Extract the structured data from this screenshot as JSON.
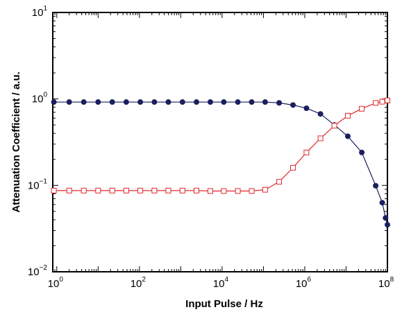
{
  "chart_data": {
    "type": "line",
    "xlabel": "Input Pulse / Hz",
    "ylabel": "Attenuation Coefficient / a.u.",
    "x_scale": "log",
    "y_scale": "log",
    "xlim": [
      0.8,
      100000000
    ],
    "ylim": [
      0.01,
      10
    ],
    "x_ticks": [
      {
        "value": 1,
        "base": "10",
        "exp": "0"
      },
      {
        "value": 100,
        "base": "10",
        "exp": "2"
      },
      {
        "value": 10000,
        "base": "10",
        "exp": "4"
      },
      {
        "value": 1000000,
        "base": "10",
        "exp": "6"
      },
      {
        "value": 100000000,
        "base": "10",
        "exp": "8"
      }
    ],
    "y_ticks": [
      {
        "value": 0.01,
        "base": "10",
        "exp": "−2"
      },
      {
        "value": 0.1,
        "base": "10",
        "exp": "−1"
      },
      {
        "value": 1,
        "base": "10",
        "exp": "0"
      },
      {
        "value": 10,
        "base": "10",
        "exp": "1"
      }
    ],
    "grid": false,
    "series": [
      {
        "color": "#1a1f5e",
        "marker": "filled-circle",
        "points": [
          [
            0.85,
            0.92
          ],
          [
            2,
            0.92
          ],
          [
            4.5,
            0.92
          ],
          [
            10,
            0.92
          ],
          [
            22,
            0.92
          ],
          [
            48,
            0.92
          ],
          [
            105,
            0.92
          ],
          [
            230,
            0.92
          ],
          [
            500,
            0.92
          ],
          [
            1100,
            0.92
          ],
          [
            2400,
            0.92
          ],
          [
            5200,
            0.92
          ],
          [
            11000,
            0.92
          ],
          [
            24000,
            0.92
          ],
          [
            52000,
            0.92
          ],
          [
            110000,
            0.92
          ],
          [
            240000,
            0.9
          ],
          [
            520000,
            0.85
          ],
          [
            1100000,
            0.78
          ],
          [
            2400000,
            0.67
          ],
          [
            5200000,
            0.5
          ],
          [
            11000000,
            0.37
          ],
          [
            24000000,
            0.24
          ],
          [
            52000000,
            0.099
          ],
          [
            75000000,
            0.063
          ],
          [
            90000000,
            0.042
          ],
          [
            100000000,
            0.035
          ]
        ]
      },
      {
        "color": "#e0262b",
        "marker": "open-square",
        "points": [
          [
            0.85,
            0.087
          ],
          [
            2,
            0.087
          ],
          [
            4.5,
            0.087
          ],
          [
            10,
            0.087
          ],
          [
            22,
            0.087
          ],
          [
            48,
            0.087
          ],
          [
            105,
            0.087
          ],
          [
            230,
            0.087
          ],
          [
            500,
            0.087
          ],
          [
            1100,
            0.087
          ],
          [
            2400,
            0.087
          ],
          [
            5200,
            0.086
          ],
          [
            11000,
            0.086
          ],
          [
            24000,
            0.086
          ],
          [
            52000,
            0.086
          ],
          [
            110000,
            0.089
          ],
          [
            240000,
            0.11
          ],
          [
            520000,
            0.16
          ],
          [
            1100000,
            0.24
          ],
          [
            2400000,
            0.35
          ],
          [
            5200000,
            0.49
          ],
          [
            11000000,
            0.64
          ],
          [
            24000000,
            0.77
          ],
          [
            52000000,
            0.9
          ],
          [
            75000000,
            0.93
          ],
          [
            100000000,
            0.96
          ]
        ]
      }
    ]
  }
}
